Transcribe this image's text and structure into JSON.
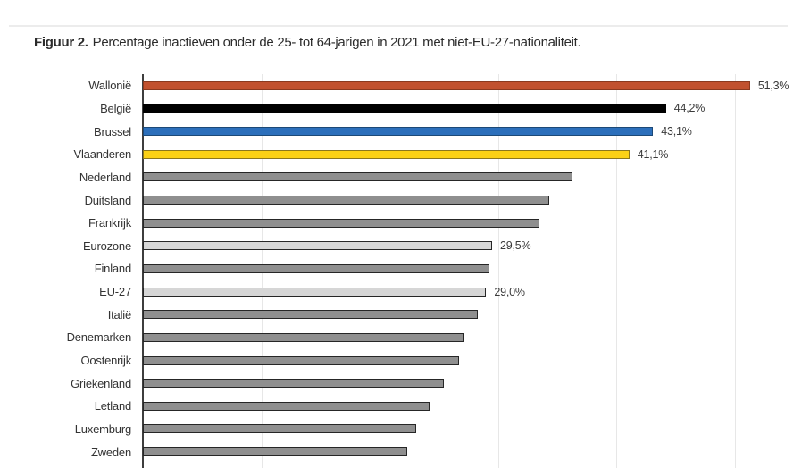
{
  "header": {
    "figure_label": "Figuur 2.",
    "figure_caption": "Percentage inactieven onder de 25- tot 64-jarigen in 2021 met niet-EU-27-nationaliteit."
  },
  "chart_data": {
    "type": "bar",
    "orientation": "horizontal",
    "title": "Figuur 2. Percentage inactieven onder de 25- tot 64-jarigen in 2021 met niet-EU-27-nationaliteit.",
    "categories": [
      "Wallonië",
      "België",
      "Brussel",
      "Vlaanderen",
      "Nederland",
      "Duitsland",
      "Frankrijk",
      "Eurozone",
      "Finland",
      "EU-27",
      "Italië",
      "Denemarken",
      "Oostenrijk",
      "Griekenland",
      "Letland",
      "Luxemburg",
      "Zweden"
    ],
    "values": [
      51.3,
      44.2,
      43.1,
      41.1,
      36.3,
      34.3,
      33.5,
      29.5,
      29.3,
      29.0,
      28.3,
      27.2,
      26.7,
      25.4,
      24.2,
      23.1,
      22.3
    ],
    "data_labels": [
      "51,3%",
      "44,2%",
      "43,1%",
      "41,1%",
      "",
      "",
      "",
      "29,5%",
      "",
      "29,0%",
      "",
      "",
      "",
      "",
      "",
      "",
      ""
    ],
    "bar_colors": [
      "#c1512e",
      "#000000",
      "#2c6fbb",
      "#fbd116",
      "#8f8f8f",
      "#8f8f8f",
      "#8f8f8f",
      "#d6d6d6",
      "#8f8f8f",
      "#d6d6d6",
      "#8f8f8f",
      "#8f8f8f",
      "#8f8f8f",
      "#8f8f8f",
      "#8f8f8f",
      "#8f8f8f",
      "#8f8f8f"
    ],
    "bar_border_colors": [
      "#8a3a1f",
      "#000000",
      "#1c4977",
      "#8b771d",
      "#262626",
      "#262626",
      "#262626",
      "#262626",
      "#262626",
      "#262626",
      "#262626",
      "#262626",
      "#262626",
      "#262626",
      "#262626",
      "#262626",
      "#262626"
    ],
    "xlabel": "",
    "ylabel": "",
    "xlim": [
      0,
      53.8
    ],
    "gridlines_pct": [
      10,
      20,
      30,
      40,
      50
    ],
    "grid": "vertical-light",
    "legend": "none",
    "value_format": "comma-decimal-percent"
  },
  "colors": {
    "background": "#ffffff",
    "axis": "#3e3e3e",
    "gridline": "#e7e7e7",
    "text": "#333333",
    "accent_wallonie": "#c1512e",
    "accent_belgie": "#000000",
    "accent_brussel": "#2c6fbb",
    "accent_vlaanderen": "#fbd116",
    "bar_gray_dark": "#8f8f8f",
    "bar_gray_light": "#d6d6d6"
  }
}
